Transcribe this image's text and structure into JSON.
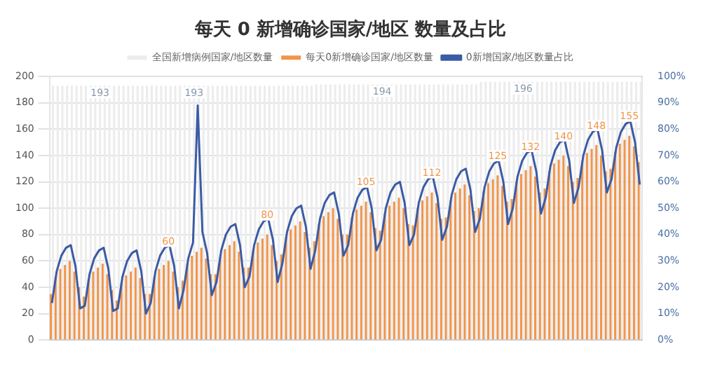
{
  "chart_data": {
    "type": "bar",
    "title": "每天 0 新增确诊国家/地区 数量及占比",
    "categories": [
      null,
      null,
      null,
      null,
      null,
      null,
      null,
      null,
      null,
      null,
      null,
      null,
      null,
      null,
      null,
      null,
      null,
      null,
      null,
      null,
      null,
      null,
      null,
      null,
      null,
      null,
      null,
      null,
      null,
      null,
      null,
      null,
      null,
      null,
      null,
      null,
      null,
      null,
      null,
      null,
      null,
      null,
      null,
      null,
      null,
      null,
      null,
      null,
      null,
      null,
      null,
      null,
      null,
      null,
      null,
      null,
      null,
      null,
      null,
      null,
      null,
      null,
      null,
      null,
      null,
      null,
      null,
      null,
      null,
      null,
      null,
      null,
      null,
      null,
      null,
      null,
      null,
      null,
      null,
      null,
      null,
      null,
      null,
      null,
      null,
      null,
      null,
      null,
      null,
      null,
      null,
      null,
      null,
      null,
      null,
      null,
      null,
      null,
      null,
      null,
      null,
      null,
      null,
      null,
      null,
      null,
      null,
      null,
      null,
      null,
      null,
      null,
      null,
      null,
      null,
      null,
      null,
      null,
      null,
      null,
      null,
      null,
      null,
      null,
      null,
      null
    ],
    "series": [
      {
        "name": "全国新增病例国家/地区数量",
        "color": "#ececec",
        "values": [
          193,
          193,
          193,
          193,
          193,
          193,
          193,
          193,
          193,
          193,
          193,
          193,
          193,
          193,
          193,
          193,
          193,
          193,
          193,
          193,
          193,
          193,
          193,
          193,
          193,
          193,
          193,
          193,
          193,
          193,
          193,
          193,
          193,
          193,
          193,
          193,
          193,
          193,
          193,
          193,
          193,
          193,
          193,
          193,
          193,
          193,
          193,
          193,
          193,
          193,
          193,
          193,
          193,
          193,
          193,
          193,
          194,
          194,
          194,
          194,
          194,
          194,
          194,
          194,
          194,
          194,
          194,
          194,
          194,
          194,
          194,
          194,
          194,
          194,
          194,
          194,
          194,
          194,
          194,
          194,
          194,
          194,
          194,
          194,
          194,
          194,
          194,
          194,
          194,
          194,
          194,
          196,
          196,
          196,
          196,
          196,
          196,
          196,
          196,
          196,
          196,
          196,
          196,
          196,
          196,
          196,
          196,
          196,
          196,
          196,
          196,
          196,
          196,
          196,
          196,
          196,
          196,
          196,
          196,
          196,
          196,
          196,
          196,
          196,
          196,
          196
        ],
        "value_labels": [
          null,
          null,
          null,
          null,
          null,
          null,
          null,
          null,
          null,
          null,
          "193",
          null,
          null,
          null,
          null,
          null,
          null,
          null,
          null,
          null,
          null,
          null,
          null,
          null,
          null,
          null,
          null,
          null,
          null,
          null,
          "193",
          null,
          null,
          null,
          null,
          null,
          null,
          null,
          null,
          null,
          null,
          null,
          null,
          null,
          null,
          null,
          null,
          null,
          null,
          null,
          null,
          null,
          null,
          null,
          null,
          null,
          null,
          null,
          null,
          null,
          null,
          null,
          null,
          null,
          null,
          null,
          null,
          null,
          null,
          null,
          "194",
          null,
          null,
          null,
          null,
          null,
          null,
          null,
          null,
          null,
          null,
          null,
          null,
          null,
          null,
          null,
          null,
          null,
          null,
          null,
          null,
          null,
          null,
          null,
          null,
          null,
          null,
          null,
          null,
          null,
          "196",
          null,
          null,
          null,
          null,
          null,
          null,
          null,
          null,
          null,
          null,
          null,
          null,
          null,
          null,
          null,
          null,
          null,
          null,
          null,
          null,
          null,
          null,
          null,
          null,
          null
        ]
      },
      {
        "name": "每天0新增确诊国家/地区数量",
        "color": "#f0954a",
        "values": [
          35,
          48,
          54,
          57,
          60,
          52,
          40,
          33,
          46,
          52,
          55,
          58,
          50,
          38,
          30,
          43,
          49,
          52,
          55,
          47,
          35,
          35,
          48,
          54,
          57,
          60,
          52,
          40,
          45,
          58,
          64,
          67,
          70,
          62,
          50,
          50,
          63,
          69,
          72,
          75,
          67,
          55,
          55,
          68,
          74,
          77,
          80,
          72,
          60,
          65,
          78,
          84,
          87,
          90,
          82,
          70,
          75,
          88,
          94,
          97,
          100,
          92,
          80,
          80,
          93,
          99,
          102,
          105,
          97,
          85,
          83,
          96,
          102,
          105,
          108,
          100,
          88,
          87,
          100,
          106,
          109,
          112,
          104,
          92,
          93,
          106,
          112,
          115,
          118,
          110,
          98,
          100,
          113,
          119,
          122,
          125,
          117,
          105,
          107,
          120,
          126,
          129,
          132,
          124,
          112,
          115,
          128,
          134,
          137,
          140,
          132,
          120,
          123,
          136,
          142,
          145,
          148,
          140,
          128,
          130,
          143,
          149,
          152,
          155,
          147,
          135
        ],
        "value_labels": [
          null,
          null,
          null,
          null,
          null,
          null,
          null,
          null,
          null,
          null,
          null,
          null,
          null,
          null,
          null,
          null,
          null,
          null,
          null,
          null,
          null,
          null,
          null,
          null,
          null,
          "60",
          null,
          null,
          null,
          null,
          null,
          null,
          null,
          null,
          null,
          null,
          null,
          null,
          null,
          null,
          null,
          null,
          null,
          null,
          null,
          null,
          "80",
          null,
          null,
          null,
          null,
          null,
          null,
          null,
          null,
          null,
          null,
          null,
          null,
          null,
          null,
          null,
          null,
          null,
          null,
          null,
          null,
          "105",
          null,
          null,
          null,
          null,
          null,
          null,
          null,
          null,
          null,
          null,
          null,
          null,
          null,
          "112",
          null,
          null,
          null,
          null,
          null,
          null,
          null,
          null,
          null,
          null,
          null,
          null,
          null,
          "125",
          null,
          null,
          null,
          null,
          null,
          null,
          "132",
          null,
          null,
          null,
          null,
          null,
          null,
          "140",
          null,
          null,
          null,
          null,
          null,
          null,
          "148",
          null,
          null,
          null,
          null,
          null,
          null,
          "155",
          null,
          null
        ]
      },
      {
        "name": "0新增国家/地区数量占比",
        "type": "line",
        "axis": "y2",
        "color": "#3b5ba5",
        "values": [
          14,
          26,
          32,
          35,
          36,
          28,
          12,
          13,
          25,
          31,
          34,
          35,
          27,
          11,
          12,
          24,
          30,
          33,
          34,
          26,
          10,
          14,
          26,
          32,
          35,
          36,
          28,
          12,
          19,
          31,
          37,
          89,
          41,
          33,
          17,
          22,
          34,
          40,
          43,
          44,
          36,
          20,
          24,
          36,
          42,
          45,
          46,
          38,
          22,
          29,
          41,
          47,
          50,
          51,
          43,
          27,
          34,
          46,
          52,
          55,
          56,
          48,
          32,
          36,
          48,
          54,
          57,
          58,
          50,
          34,
          38,
          50,
          56,
          59,
          60,
          52,
          36,
          40,
          52,
          58,
          61,
          62,
          54,
          38,
          43,
          55,
          61,
          64,
          65,
          57,
          41,
          46,
          58,
          64,
          67,
          68,
          60,
          44,
          50,
          62,
          68,
          71,
          72,
          64,
          48,
          54,
          66,
          72,
          75,
          76,
          68,
          52,
          58,
          70,
          76,
          79,
          80,
          72,
          56,
          61,
          73,
          79,
          82,
          83,
          75,
          59
        ]
      }
    ],
    "ylim": [
      0,
      200
    ],
    "yticks": [
      0,
      20,
      40,
      60,
      80,
      100,
      120,
      140,
      160,
      180,
      200
    ],
    "y2lim": [
      0,
      100
    ],
    "y2ticks": [
      {
        "value": 0,
        "label": "0%"
      },
      {
        "value": 10,
        "label": "10%"
      },
      {
        "value": 20,
        "label": "20%"
      },
      {
        "value": 30,
        "label": "30%"
      },
      {
        "value": 40,
        "label": "40%"
      },
      {
        "value": 50,
        "label": "50%"
      },
      {
        "value": 60,
        "label": "60%"
      },
      {
        "value": 70,
        "label": "70%"
      },
      {
        "value": 80,
        "label": "80%"
      },
      {
        "value": 90,
        "label": "90%"
      },
      {
        "value": 100,
        "label": "100%"
      }
    ],
    "grid": "y",
    "legend": "top",
    "marker": "none",
    "line_style": "solid"
  }
}
